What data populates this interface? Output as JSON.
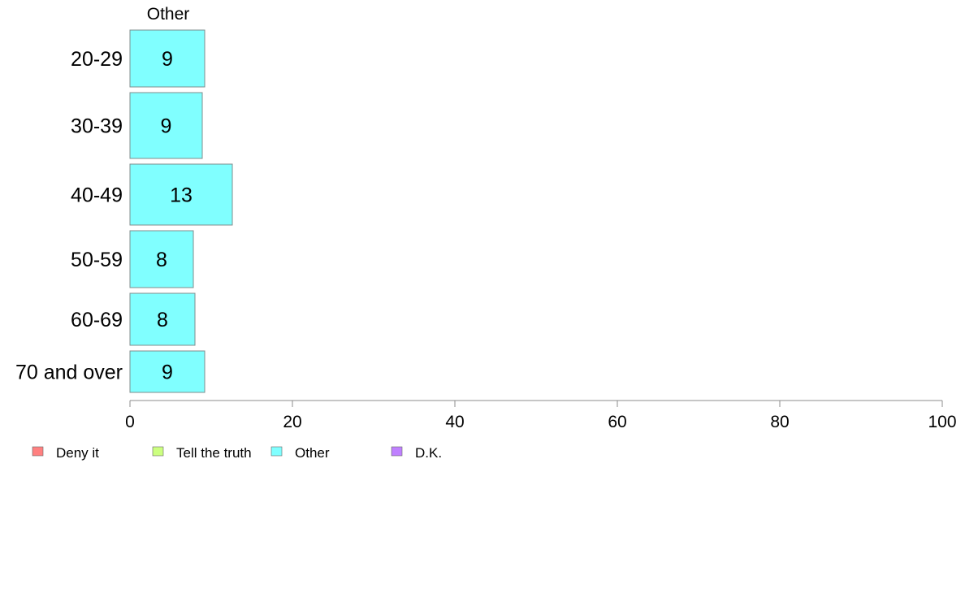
{
  "chart_data": {
    "type": "bar",
    "orientation": "horizontal",
    "panel_title": "Other",
    "categories": [
      "20-29",
      "30-39",
      "40-49",
      "50-59",
      "60-69",
      "70 and over"
    ],
    "series": [
      {
        "name": "Other",
        "color": "#80ffff",
        "values": [
          9.2,
          8.9,
          12.6,
          7.8,
          8.0,
          9.2
        ],
        "labels": [
          "9",
          "9",
          "13",
          "8",
          "8",
          "9"
        ]
      }
    ],
    "xlim": [
      0,
      100
    ],
    "xticks": [
      "0",
      "20",
      "40",
      "60",
      "80",
      "100"
    ],
    "grid": false,
    "legend": {
      "placement": "bottom-left",
      "items": [
        {
          "label": "Deny it",
          "color": "#ff8080"
        },
        {
          "label": "Tell the truth",
          "color": "#ccff80"
        },
        {
          "label": "Other",
          "color": "#80ffff"
        },
        {
          "label": "D.K.",
          "color": "#bf80ff"
        }
      ]
    }
  }
}
